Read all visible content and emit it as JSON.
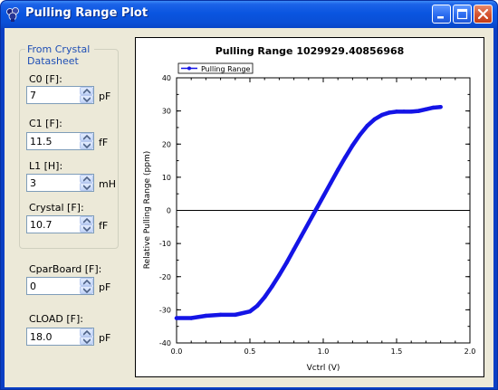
{
  "window": {
    "title": "Pulling Range Plot"
  },
  "crystal_group": {
    "legend": "From Crystal Datasheet",
    "fields": [
      {
        "label": "C0 [F]:",
        "value": "7",
        "unit": "pF"
      },
      {
        "label": "C1 [F]:",
        "value": "11.5",
        "unit": "fF"
      },
      {
        "label": "L1 [H]:",
        "value": "3",
        "unit": "mH"
      },
      {
        "label": "Crystal [F]:",
        "value": "10.7",
        "unit": "fF"
      }
    ]
  },
  "board_fields": [
    {
      "label": "CparBoard [F]:",
      "value": "0",
      "unit": "pF"
    },
    {
      "label": "CLOAD [F]:",
      "value": "18.0",
      "unit": "pF"
    }
  ],
  "icons": {
    "app": "crystal-app-icon",
    "minimize": "minimize-icon",
    "maximize": "maximize-icon",
    "close": "close-icon",
    "spin_up": "arrow-up-icon",
    "spin_down": "arrow-down-icon"
  },
  "colors": {
    "series": "#1414e6",
    "titlebar": "#0a55e0",
    "group_legend": "#1f4fb5"
  },
  "chart_data": {
    "type": "line",
    "title": "Pulling Range 1029929.40856968",
    "xlabel": "Vctrl (V)",
    "ylabel": "Relative Pulling Range (ppm)",
    "xlim": [
      0.0,
      2.0
    ],
    "ylim": [
      -40,
      40
    ],
    "xticks": [
      "0.0",
      "0.5",
      "1.0",
      "1.5",
      "2.0"
    ],
    "yticks": [
      "40",
      "30",
      "20",
      "10",
      "0",
      "-10",
      "-20",
      "-30",
      "-40"
    ],
    "legend": "top-left",
    "grid": false,
    "series": [
      {
        "name": "Pulling Range",
        "x": [
          0.0,
          0.1,
          0.2,
          0.3,
          0.4,
          0.5,
          0.55,
          0.6,
          0.65,
          0.7,
          0.75,
          0.8,
          0.85,
          0.9,
          0.95,
          1.0,
          1.05,
          1.1,
          1.15,
          1.2,
          1.25,
          1.3,
          1.35,
          1.4,
          1.45,
          1.5,
          1.55,
          1.6,
          1.65,
          1.7,
          1.75,
          1.8
        ],
        "y": [
          -32.5,
          -32.5,
          -31.8,
          -31.5,
          -31.5,
          -30.5,
          -28.8,
          -26.2,
          -23.0,
          -19.5,
          -15.8,
          -11.8,
          -7.8,
          -3.8,
          0.2,
          4.2,
          8.2,
          12.2,
          16.0,
          19.6,
          22.8,
          25.5,
          27.5,
          28.8,
          29.5,
          29.8,
          29.8,
          29.8,
          30.0,
          30.5,
          31.0,
          31.2
        ]
      }
    ]
  }
}
